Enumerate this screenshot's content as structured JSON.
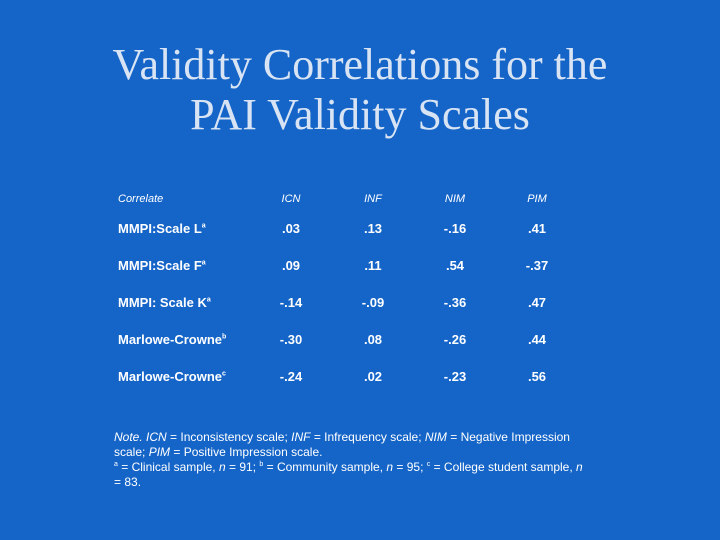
{
  "title": {
    "line1": "Validity Correlations for the",
    "line2": "PAI Validity Scales"
  },
  "table": {
    "headers": [
      "Correlate",
      "ICN",
      "INF",
      "NIM",
      "PIM"
    ],
    "rows": [
      {
        "label": "MMPI:Scale L",
        "sup": "a",
        "values": [
          ".03",
          ".13",
          "-.16",
          ".41"
        ]
      },
      {
        "label": "MMPI:Scale F",
        "sup": "a",
        "values": [
          ".09",
          ".11",
          ".54",
          "-.37"
        ]
      },
      {
        "label": "MMPI: Scale K",
        "sup": "a",
        "values": [
          "-.14",
          "-.09",
          "-.36",
          ".47"
        ]
      },
      {
        "label": "Marlowe-Crowne",
        "sup": "b",
        "values": [
          "-.30",
          ".08",
          "-.26",
          ".44"
        ]
      },
      {
        "label": "Marlowe-Crowne",
        "sup": "c",
        "values": [
          "-.24",
          ".02",
          "-.23",
          ".56"
        ]
      }
    ]
  },
  "note": {
    "note_label": "Note.",
    "icn_abbr": "ICN",
    "icn_def": "= Inconsistency scale;",
    "inf_abbr": "INF",
    "inf_def": "= Infrequency scale;",
    "nim_abbr": "NIM",
    "nim_def": "= Negative Impression scale;",
    "pim_abbr": "PIM",
    "pim_def": "= Positive Impression scale.",
    "sup_a": "a",
    "a_def": "= Clinical sample,",
    "n_symbol": "n",
    "a_n": "= 91;",
    "sup_b": "b",
    "b_def": "= Community sample,",
    "b_n": "= 95;",
    "sup_c": "c",
    "c_def": "= College student sample,",
    "c_n": "= 83."
  },
  "colors": {
    "background": "#1565c8",
    "title": "#d8e4f4",
    "text": "#ffffff"
  }
}
